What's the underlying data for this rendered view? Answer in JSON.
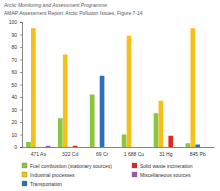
{
  "chart_data": {
    "type": "bar",
    "subtitle": "Arctic Monitoring and Assessment Programme",
    "title": "AMAP Assessment Report: Arctic Pollution Issues, Figure 7-14",
    "categories": [
      "471 As",
      "322 Cd",
      "69 Cr",
      "1 688 Cu",
      "31 Hg",
      "845 Pb"
    ],
    "series": [
      {
        "name": "Fuel combustion (stationary sources)",
        "color": "#8cc63e",
        "values": [
          4,
          23,
          42,
          10,
          27,
          3
        ]
      },
      {
        "name": "Industrial processes",
        "color": "#f5c01a",
        "values": [
          95,
          74,
          0,
          89,
          37,
          95
        ]
      },
      {
        "name": "Transportation",
        "color": "#2f6fb8",
        "values": [
          0,
          0,
          57,
          0,
          0,
          2
        ]
      },
      {
        "name": "Solid waste incineration",
        "color": "#e0261f",
        "values": [
          0,
          1,
          0,
          0,
          9,
          0
        ]
      },
      {
        "name": "Miscellaneous sources",
        "color": "#9a5bb0",
        "values": [
          1,
          0,
          0,
          0,
          0,
          0
        ]
      }
    ],
    "ylim": [
      0,
      100
    ],
    "yticks": [
      0,
      10,
      20,
      30,
      40,
      50,
      60,
      70,
      80,
      90,
      100
    ],
    "grid": false
  }
}
